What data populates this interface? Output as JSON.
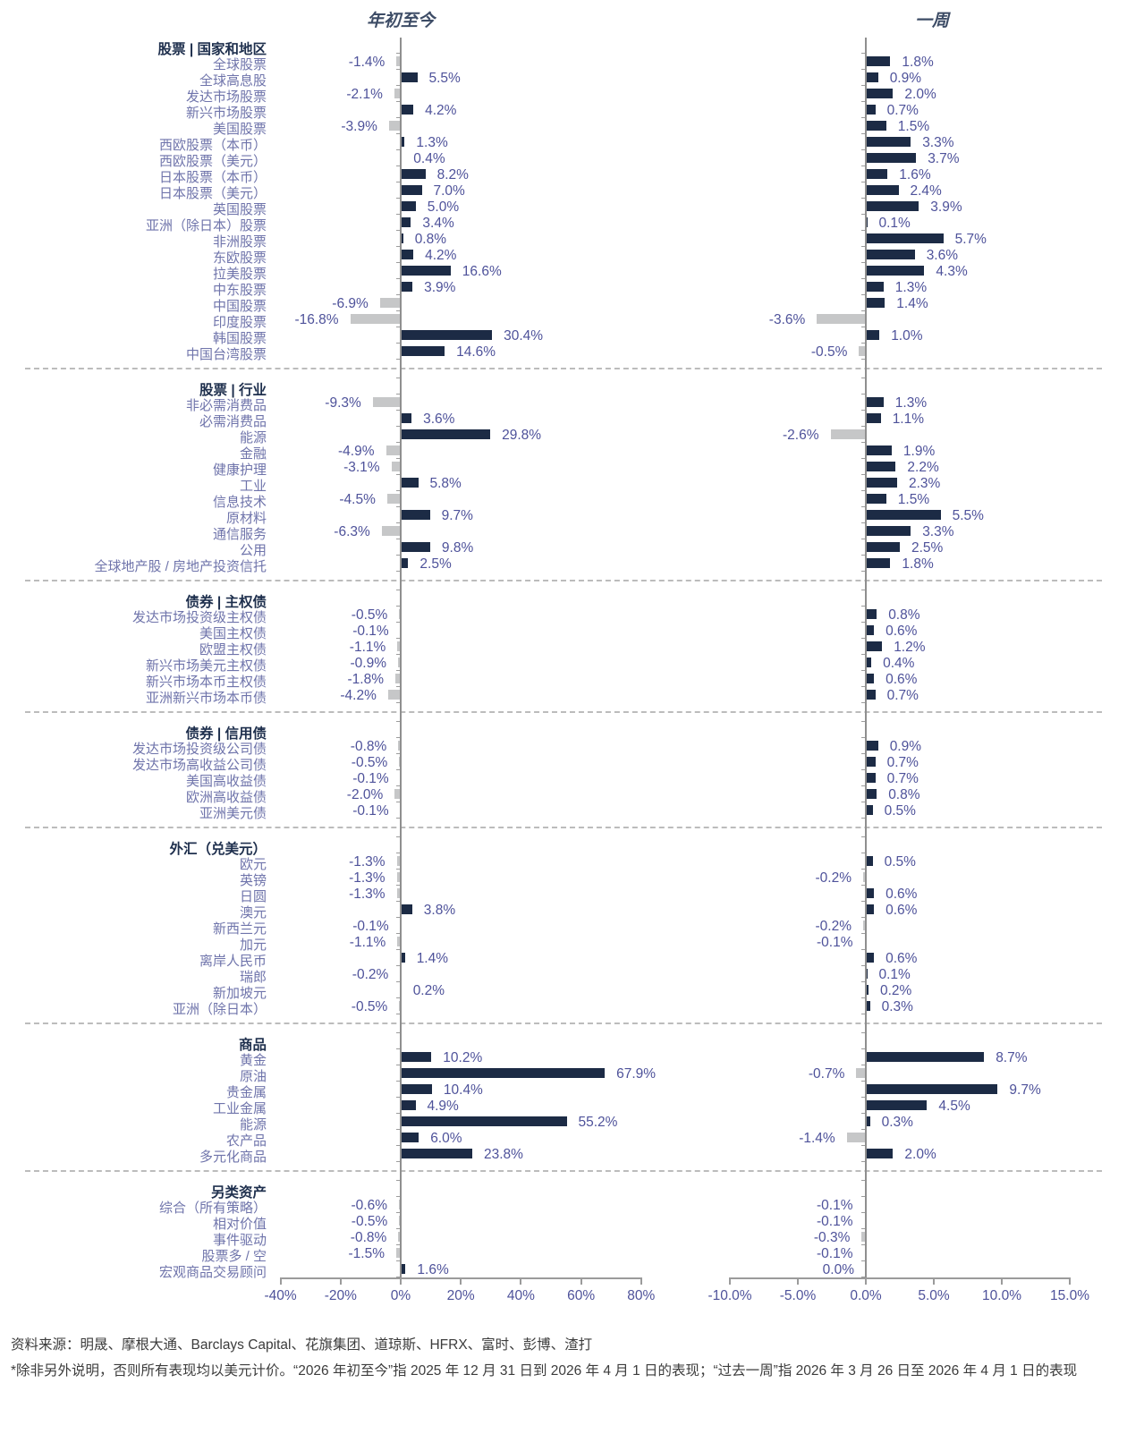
{
  "page": {
    "panel_titles": {
      "ytd": "年初至今",
      "week": "一周"
    },
    "footer": {
      "source": "资料来源：明晟、摩根大通、Barclays Capital、花旗集团、道琼斯、HFRX、富时、彭博、渣打",
      "footnote": "*除非另外说明，否则所有表现均以美元计价。“2026 年初至今”指 2025 年 12 月 31 日到 2026 年 4 月 1 日的表现；“过去一周”指 2026 年 3 月 26 日至 2026 年 4 月 1 日的表现"
    },
    "colors": {
      "positive_bar": "#1c2b45",
      "negative_bar": "#c6c7c8",
      "value_text": "#4e529a",
      "label_text": "#6f74ab",
      "header_text": "#1e2f4d",
      "axis_gray": "#9b9b9b"
    }
  },
  "chart_data": {
    "type": "bar",
    "orientation": "horizontal",
    "unit": "%",
    "grid": false,
    "panels": [
      {
        "title": "年初至今",
        "xlim": [
          -40,
          80
        ],
        "ticks_percent": [
          -40,
          -20,
          0,
          20,
          40,
          60,
          80
        ],
        "tick_labels": [
          "-40%",
          "-20%",
          "0%",
          "20%",
          "40%",
          "60%",
          "80%"
        ]
      },
      {
        "title": "一周",
        "xlim": [
          -10,
          15
        ],
        "ticks_percent": [
          -10,
          -5,
          0,
          5,
          10,
          15
        ],
        "tick_labels": [
          "-10.0%",
          "-5.0%",
          "0.0%",
          "5.0%",
          "10.0%",
          "15.0%"
        ]
      }
    ],
    "sections": [
      {
        "header": "股票 | 国家和地区",
        "rows": [
          {
            "label": "全球股票",
            "ytd": -1.4,
            "week": 1.8
          },
          {
            "label": "全球高息股",
            "ytd": 5.5,
            "week": 0.9
          },
          {
            "label": "发达市场股票",
            "ytd": -2.1,
            "week": 2.0
          },
          {
            "label": "新兴市场股票",
            "ytd": 4.2,
            "week": 0.7
          },
          {
            "label": "美国股票",
            "ytd": -3.9,
            "week": 1.5
          },
          {
            "label": "西欧股票（本币）",
            "ytd": 1.3,
            "week": 3.3
          },
          {
            "label": "西欧股票（美元）",
            "ytd": 0.4,
            "week": 3.7
          },
          {
            "label": "日本股票（本币）",
            "ytd": 8.2,
            "week": 1.6
          },
          {
            "label": "日本股票（美元）",
            "ytd": 7.0,
            "week": 2.4
          },
          {
            "label": "英国股票",
            "ytd": 5.0,
            "week": 3.9
          },
          {
            "label": "亚洲（除日本）股票",
            "ytd": 3.4,
            "week": 0.1
          },
          {
            "label": "非洲股票",
            "ytd": 0.8,
            "week": 5.7
          },
          {
            "label": "东欧股票",
            "ytd": 4.2,
            "week": 3.6
          },
          {
            "label": "拉美股票",
            "ytd": 16.6,
            "week": 4.3
          },
          {
            "label": "中东股票",
            "ytd": 3.9,
            "week": 1.3
          },
          {
            "label": "中国股票",
            "ytd": -6.9,
            "week": 1.4
          },
          {
            "label": "印度股票",
            "ytd": -16.8,
            "week": -3.6
          },
          {
            "label": "韩国股票",
            "ytd": 30.4,
            "week": 1.0
          },
          {
            "label": "中国台湾股票",
            "ytd": 14.6,
            "week": -0.5
          }
        ]
      },
      {
        "header": "股票 | 行业",
        "rows": [
          {
            "label": "非必需消费品",
            "ytd": -9.3,
            "week": 1.3
          },
          {
            "label": "必需消费品",
            "ytd": 3.6,
            "week": 1.1
          },
          {
            "label": "能源",
            "ytd": 29.8,
            "week": -2.6
          },
          {
            "label": "金融",
            "ytd": -4.9,
            "week": 1.9
          },
          {
            "label": "健康护理",
            "ytd": -3.1,
            "week": 2.2
          },
          {
            "label": "工业",
            "ytd": 5.8,
            "week": 2.3
          },
          {
            "label": "信息技术",
            "ytd": -4.5,
            "week": 1.5
          },
          {
            "label": "原材料",
            "ytd": 9.7,
            "week": 5.5
          },
          {
            "label": "通信服务",
            "ytd": -6.3,
            "week": 3.3
          },
          {
            "label": "公用",
            "ytd": 9.8,
            "week": 2.5
          },
          {
            "label": "全球地产股 / 房地产投资信托",
            "ytd": 2.5,
            "week": 1.8
          }
        ]
      },
      {
        "header": "债券 | 主权债",
        "rows": [
          {
            "label": "发达市场投资级主权债",
            "ytd": -0.5,
            "week": 0.8
          },
          {
            "label": "美国主权债",
            "ytd": -0.1,
            "week": 0.6
          },
          {
            "label": "欧盟主权债",
            "ytd": -1.1,
            "week": 1.2
          },
          {
            "label": "新兴市场美元主权债",
            "ytd": -0.9,
            "week": 0.4
          },
          {
            "label": "新兴市场本币主权债",
            "ytd": -1.8,
            "week": 0.6
          },
          {
            "label": "亚洲新兴市场本币债",
            "ytd": -4.2,
            "week": 0.7
          }
        ]
      },
      {
        "header": "债券 | 信用债",
        "rows": [
          {
            "label": "发达市场投资级公司债",
            "ytd": -0.8,
            "week": 0.9
          },
          {
            "label": "发达市场高收益公司债",
            "ytd": -0.5,
            "week": 0.7
          },
          {
            "label": "美国高收益债",
            "ytd": -0.1,
            "week": 0.7
          },
          {
            "label": "欧洲高收益债",
            "ytd": -2.0,
            "week": 0.8
          },
          {
            "label": "亚洲美元债",
            "ytd": -0.1,
            "week": 0.5
          }
        ]
      },
      {
        "header": "外汇（兑美元）",
        "rows": [
          {
            "label": "欧元",
            "ytd": -1.3,
            "week": 0.5
          },
          {
            "label": "英镑",
            "ytd": -1.3,
            "week": -0.2
          },
          {
            "label": "日圆",
            "ytd": -1.3,
            "week": 0.6
          },
          {
            "label": "澳元",
            "ytd": 3.8,
            "week": 0.6
          },
          {
            "label": "新西兰元",
            "ytd": -0.1,
            "week": -0.2
          },
          {
            "label": "加元",
            "ytd": -1.1,
            "week": -0.1
          },
          {
            "label": "离岸人民币",
            "ytd": 1.4,
            "week": 0.6
          },
          {
            "label": "瑞郎",
            "ytd": -0.2,
            "week": 0.1
          },
          {
            "label": "新加坡元",
            "ytd": 0.2,
            "week": 0.2
          },
          {
            "label": "亚洲（除日本）",
            "ytd": -0.5,
            "week": 0.3
          }
        ]
      },
      {
        "header": "商品",
        "rows": [
          {
            "label": "黄金",
            "ytd": 10.2,
            "week": 8.7
          },
          {
            "label": "原油",
            "ytd": 67.9,
            "week": -0.7
          },
          {
            "label": "贵金属",
            "ytd": 10.4,
            "week": 9.7
          },
          {
            "label": "工业金属",
            "ytd": 4.9,
            "week": 4.5
          },
          {
            "label": "能源",
            "ytd": 55.2,
            "week": 0.3
          },
          {
            "label": "农产品",
            "ytd": 6.0,
            "week": -1.4
          },
          {
            "label": "多元化商品",
            "ytd": 23.8,
            "week": 2.0
          }
        ]
      },
      {
        "header": "另类资产",
        "rows": [
          {
            "label": "综合（所有策略）",
            "ytd": -0.6,
            "week": -0.1
          },
          {
            "label": "相对价值",
            "ytd": -0.5,
            "week": -0.1
          },
          {
            "label": "事件驱动",
            "ytd": -0.8,
            "week": -0.3
          },
          {
            "label": "股票多 / 空",
            "ytd": -1.5,
            "week": -0.1
          },
          {
            "label": "宏观商品交易顾问",
            "ytd": 1.6,
            "week": 0.0
          }
        ]
      }
    ]
  }
}
